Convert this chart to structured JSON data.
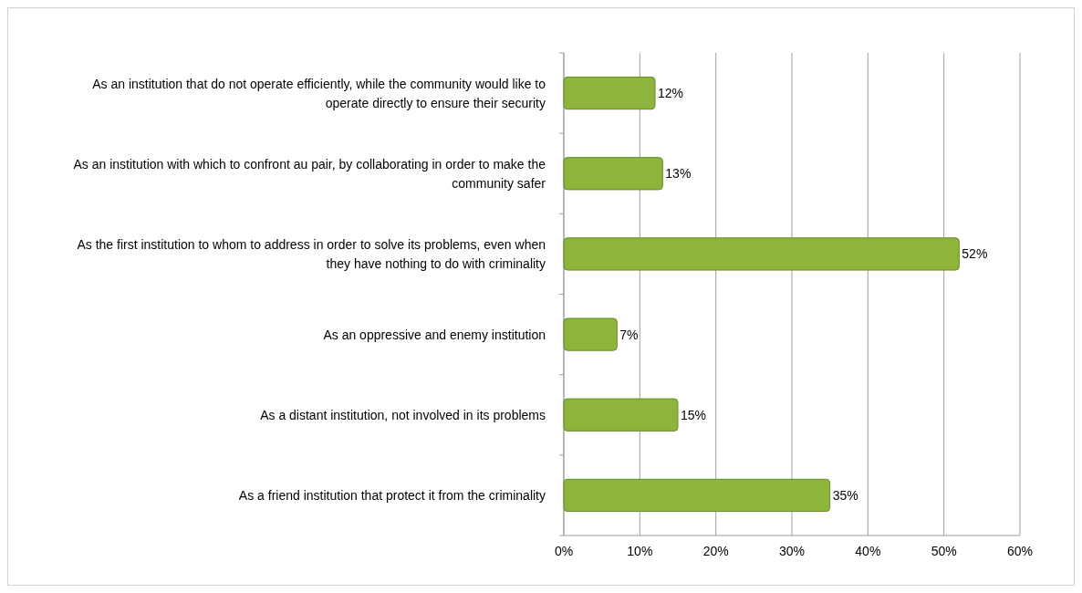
{
  "chart_data": {
    "type": "bar",
    "orientation": "horizontal",
    "categories": [
      "As an institution that do not operate efficiently, while the community would like to operate directly to ensure their security",
      "As an institution with which to confront au pair, by collaborating in order to make the community safer",
      "As the first institution to whom to address in order to solve its problems, even when they have nothing to do with criminality",
      "As an oppressive and enemy institution",
      "As a distant institution, not involved in its problems",
      "As a friend institution that protect it from the criminality"
    ],
    "values": [
      12,
      13,
      52,
      7,
      15,
      35
    ],
    "value_labels": [
      "12%",
      "13%",
      "52%",
      "7%",
      "15%",
      "35%"
    ],
    "color": "#8db53c",
    "xlim": [
      0,
      60
    ],
    "xticks": [
      {
        "value": 0,
        "label": "0%"
      },
      {
        "value": 10,
        "label": "10%"
      },
      {
        "value": 20,
        "label": "20%"
      },
      {
        "value": 30,
        "label": "30%"
      },
      {
        "value": 40,
        "label": "40%"
      },
      {
        "value": 50,
        "label": "50%"
      },
      {
        "value": 60,
        "label": "60%"
      }
    ],
    "grid": "x"
  }
}
